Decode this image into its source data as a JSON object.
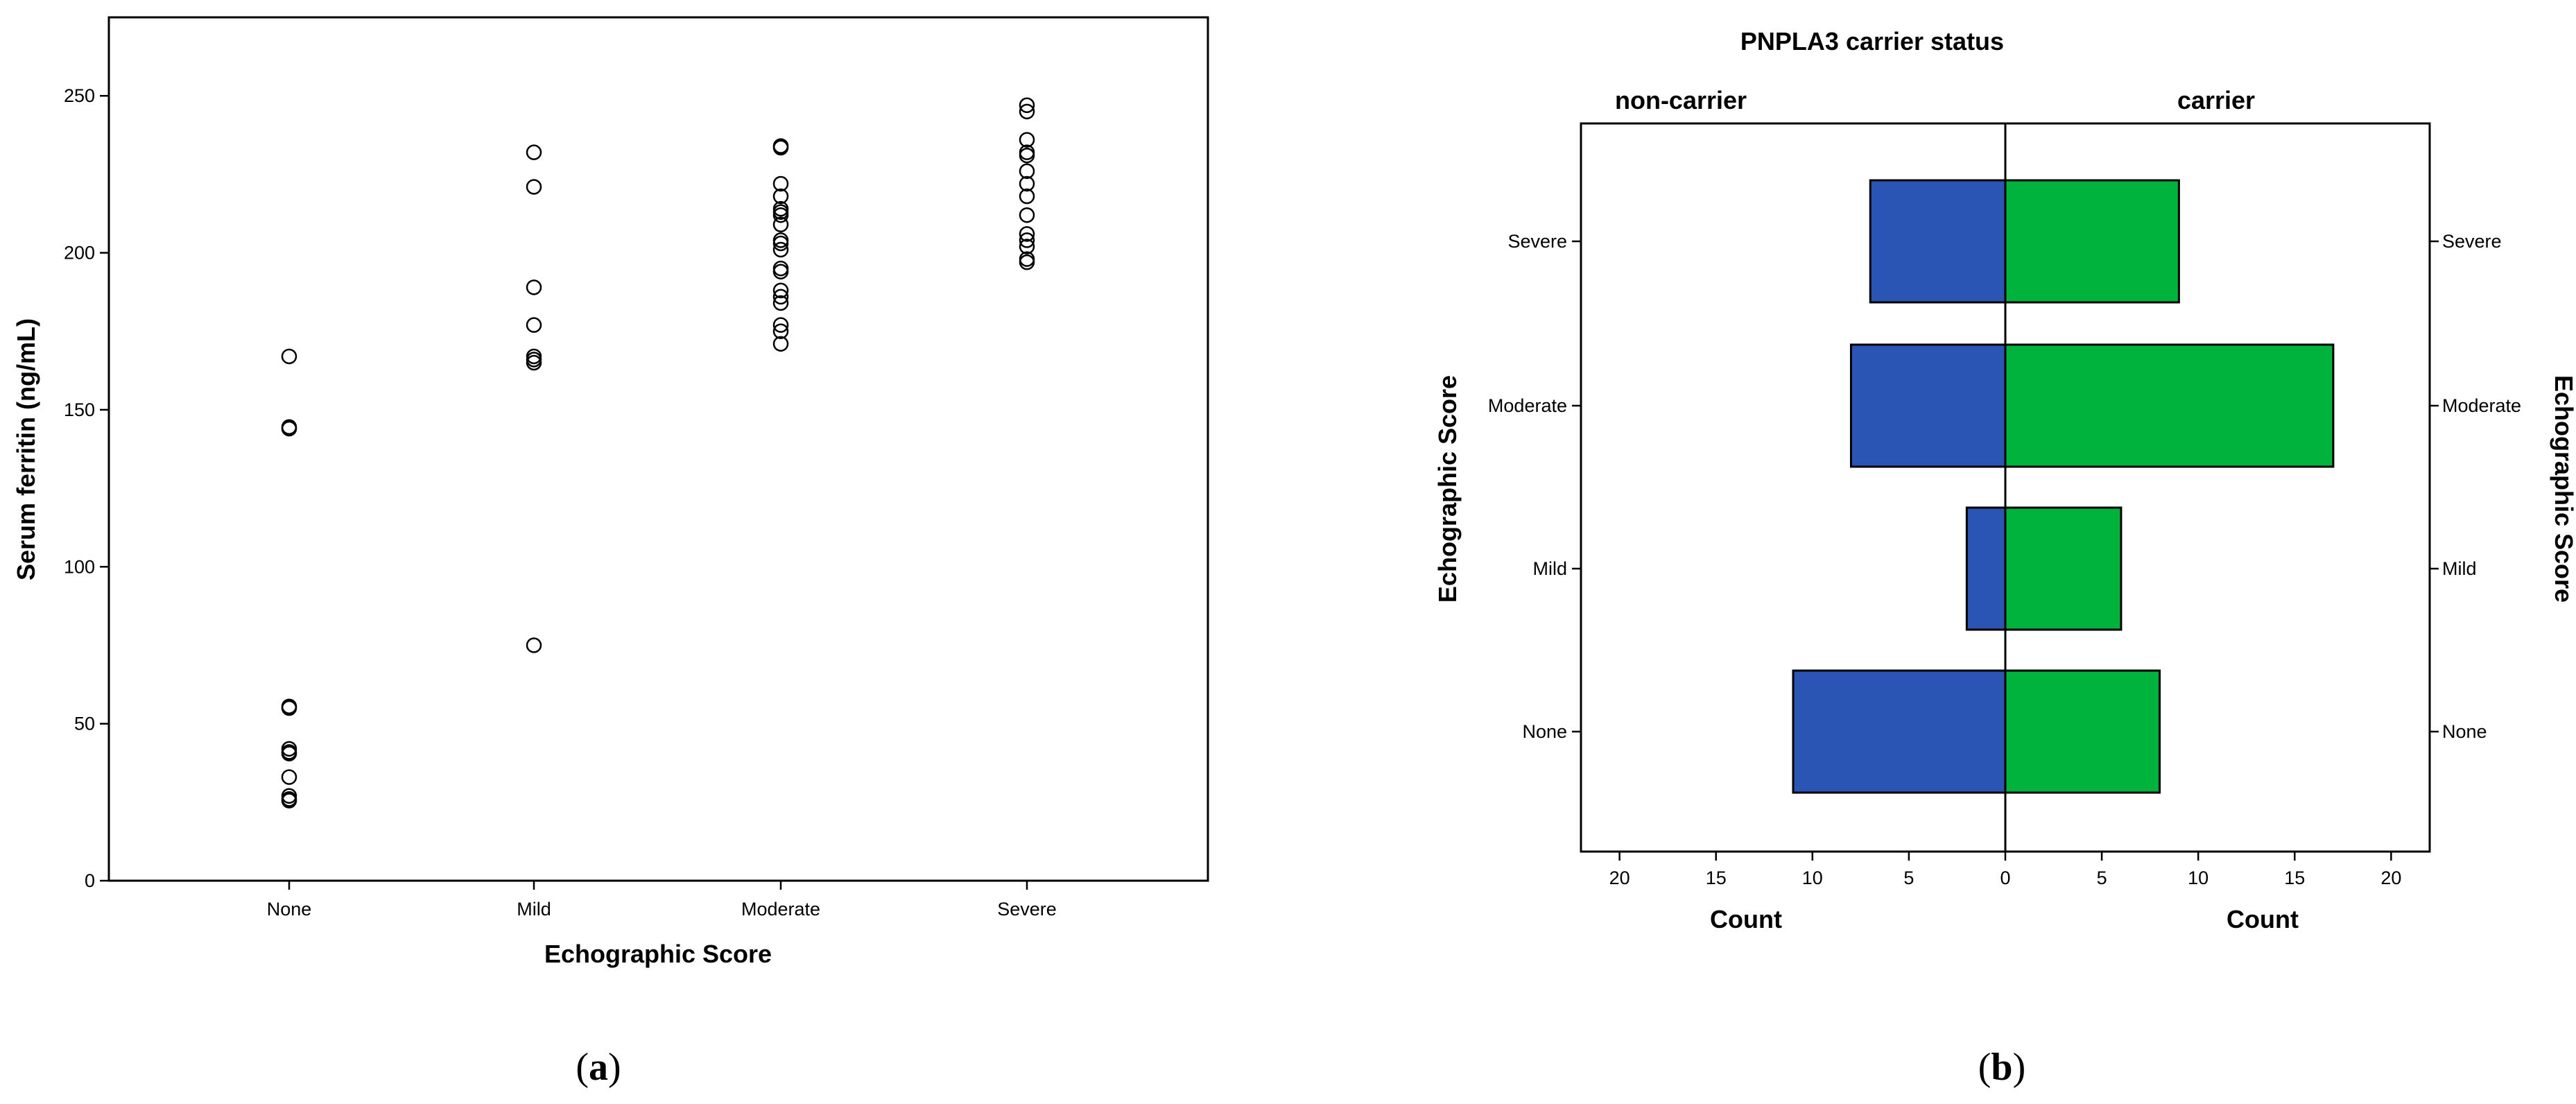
{
  "panel_a": {
    "caption_open": "(",
    "caption_letter": "a",
    "caption_close": ")"
  },
  "panel_b": {
    "caption_open": "(",
    "caption_letter": "b",
    "caption_close": ")"
  },
  "chart_data": [
    {
      "type": "scatter",
      "title": "",
      "xlabel": "Echographic Score",
      "ylabel": "Serum ferritin (ng/mL)",
      "categories": [
        "None",
        "Mild",
        "Moderate",
        "Severe"
      ],
      "yticks": [
        0,
        50,
        100,
        150,
        200,
        250
      ],
      "ylim": [
        0,
        275
      ],
      "grid": false,
      "marker": "open-circle",
      "points": [
        {
          "x": "None",
          "y": 167
        },
        {
          "x": "None",
          "y": 144
        },
        {
          "x": "None",
          "y": 144.5
        },
        {
          "x": "None",
          "y": 55
        },
        {
          "x": "None",
          "y": 55.5
        },
        {
          "x": "None",
          "y": 42
        },
        {
          "x": "None",
          "y": 41
        },
        {
          "x": "None",
          "y": 40.5
        },
        {
          "x": "None",
          "y": 33
        },
        {
          "x": "None",
          "y": 27
        },
        {
          "x": "None",
          "y": 26
        },
        {
          "x": "None",
          "y": 25.5
        },
        {
          "x": "Mild",
          "y": 232
        },
        {
          "x": "Mild",
          "y": 221
        },
        {
          "x": "Mild",
          "y": 189
        },
        {
          "x": "Mild",
          "y": 177
        },
        {
          "x": "Mild",
          "y": 167
        },
        {
          "x": "Mild",
          "y": 166
        },
        {
          "x": "Mild",
          "y": 165
        },
        {
          "x": "Mild",
          "y": 75
        },
        {
          "x": "Moderate",
          "y": 234
        },
        {
          "x": "Moderate",
          "y": 233.5
        },
        {
          "x": "Moderate",
          "y": 222
        },
        {
          "x": "Moderate",
          "y": 218
        },
        {
          "x": "Moderate",
          "y": 214
        },
        {
          "x": "Moderate",
          "y": 213
        },
        {
          "x": "Moderate",
          "y": 212
        },
        {
          "x": "Moderate",
          "y": 209
        },
        {
          "x": "Moderate",
          "y": 204
        },
        {
          "x": "Moderate",
          "y": 203
        },
        {
          "x": "Moderate",
          "y": 201
        },
        {
          "x": "Moderate",
          "y": 195
        },
        {
          "x": "Moderate",
          "y": 194
        },
        {
          "x": "Moderate",
          "y": 188
        },
        {
          "x": "Moderate",
          "y": 186
        },
        {
          "x": "Moderate",
          "y": 184
        },
        {
          "x": "Moderate",
          "y": 177
        },
        {
          "x": "Moderate",
          "y": 175
        },
        {
          "x": "Moderate",
          "y": 171
        },
        {
          "x": "Severe",
          "y": 247
        },
        {
          "x": "Severe",
          "y": 245
        },
        {
          "x": "Severe",
          "y": 236
        },
        {
          "x": "Severe",
          "y": 232
        },
        {
          "x": "Severe",
          "y": 231
        },
        {
          "x": "Severe",
          "y": 226
        },
        {
          "x": "Severe",
          "y": 222
        },
        {
          "x": "Severe",
          "y": 218
        },
        {
          "x": "Severe",
          "y": 212
        },
        {
          "x": "Severe",
          "y": 206
        },
        {
          "x": "Severe",
          "y": 204
        },
        {
          "x": "Severe",
          "y": 202
        },
        {
          "x": "Severe",
          "y": 198
        },
        {
          "x": "Severe",
          "y": 197
        }
      ]
    },
    {
      "type": "bar",
      "orientation": "horizontal",
      "layout": "population-pyramid",
      "title": "PNPLA3 carrier status",
      "ylabel": "Echographic Score",
      "categories": [
        "Severe",
        "Moderate",
        "Mild",
        "None"
      ],
      "xticks": [
        20,
        15,
        10,
        5,
        0,
        5,
        10,
        15,
        20
      ],
      "xlim": [
        0,
        22
      ],
      "grid": false,
      "series": [
        {
          "name": "non-carrier",
          "side": "left",
          "xlabel": "Count",
          "color": "#2b55b5",
          "values": [
            7,
            8,
            2,
            11
          ]
        },
        {
          "name": "carrier",
          "side": "right",
          "xlabel": "Count",
          "color": "#00b33c",
          "values": [
            9,
            17,
            6,
            8
          ]
        }
      ]
    }
  ]
}
